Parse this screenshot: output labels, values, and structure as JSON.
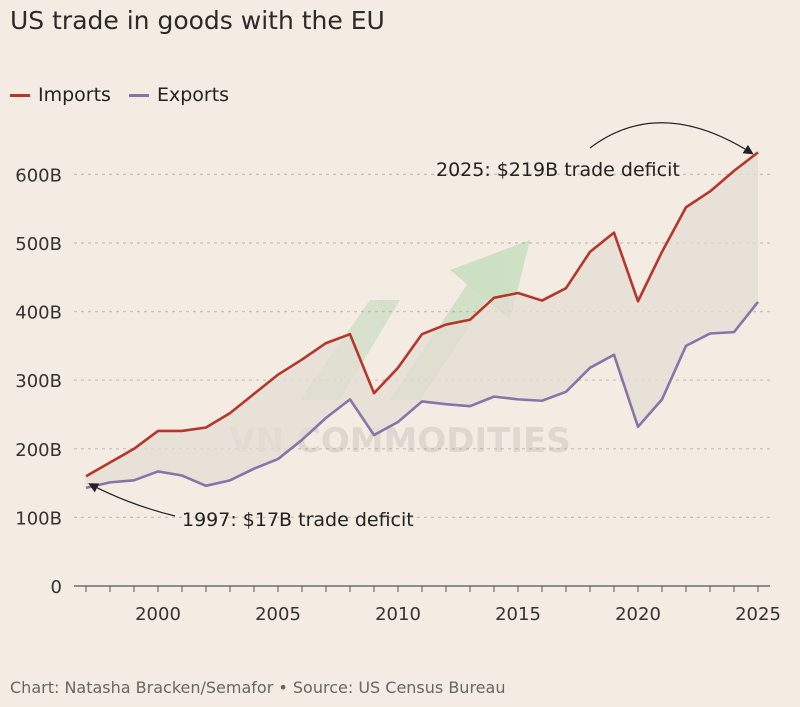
{
  "title": "US trade in goods with the EU",
  "footer": "Chart: Natasha Bracken/Semafor • Source: US Census Bureau",
  "watermark": "VN COMMODITIES",
  "colors": {
    "imports": "#b5362a",
    "exports": "#8874a8",
    "fill": "#e3ddd4",
    "grid": "#c9c2b8",
    "background": "#f4ece2"
  },
  "chart_data": {
    "type": "line",
    "title": "US trade in goods with the EU",
    "xlabel": "",
    "ylabel": "",
    "x": [
      1997,
      1998,
      1999,
      2000,
      2001,
      2002,
      2003,
      2004,
      2005,
      2006,
      2007,
      2008,
      2009,
      2010,
      2011,
      2012,
      2013,
      2014,
      2015,
      2016,
      2017,
      2018,
      2019,
      2020,
      2021,
      2022,
      2023,
      2024,
      2025
    ],
    "series": [
      {
        "name": "Imports",
        "values": [
          160,
          180,
          200,
          226,
          226,
          231,
          252,
          280,
          308,
          330,
          354,
          367,
          281,
          318,
          367,
          381,
          388,
          420,
          427,
          416,
          434,
          487,
          515,
          415,
          487,
          552,
          575,
          605,
          632
        ]
      },
      {
        "name": "Exports",
        "values": [
          143,
          151,
          154,
          167,
          161,
          146,
          154,
          171,
          185,
          213,
          245,
          272,
          220,
          239,
          269,
          265,
          262,
          276,
          272,
          270,
          283,
          318,
          337,
          232,
          272,
          350,
          368,
          370,
          414
        ]
      }
    ],
    "xlim": [
      1996.5,
      2025.5
    ],
    "ylim": [
      0,
      650
    ],
    "xticks": [
      "2000",
      "2005",
      "2010",
      "2015",
      "2020",
      "2025"
    ],
    "yticks": [
      "0",
      "100B",
      "200B",
      "300B",
      "400B",
      "500B",
      "600B"
    ],
    "grid": true,
    "legend": "top-left",
    "annotations": [
      {
        "text": "1997: $17B trade deficit",
        "x": 1997,
        "y": 160
      },
      {
        "text": "2025: $219B trade deficit",
        "x": 2025,
        "y": 632
      }
    ]
  }
}
